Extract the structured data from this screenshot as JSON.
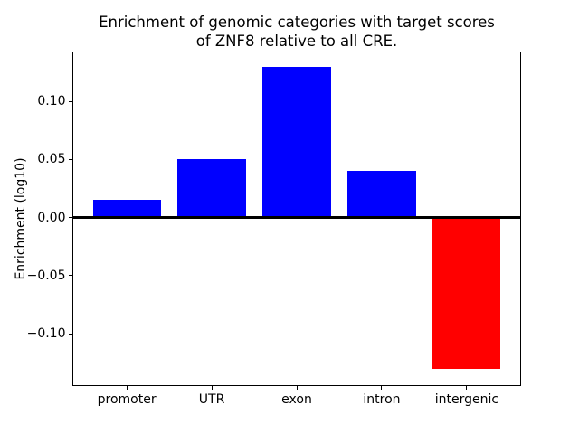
{
  "chart_data": {
    "type": "bar",
    "title": "Enrichment of genomic categories with target scores of ZNF8 relative to all CRE.",
    "title_lines": [
      "Enrichment of genomic categories with target scores",
      "of ZNF8 relative to all CRE."
    ],
    "categories": [
      "promoter",
      "UTR",
      "exon",
      "intron",
      "intergenic"
    ],
    "values": [
      0.015,
      0.05,
      0.13,
      0.04,
      -0.13
    ],
    "xlabel": "",
    "ylabel": "Enrichment (log10)",
    "ylim": [
      -0.145,
      0.143
    ],
    "yticks": [
      0.1,
      0.05,
      0.0,
      -0.05,
      -0.1
    ],
    "ytick_labels": [
      "0.10",
      "0.05",
      "0.00",
      "−0.05",
      "−0.10"
    ],
    "grid": false,
    "legend": null,
    "positive_color": "#0000ff",
    "negative_color": "#ff0000",
    "zero_line_color": "#000000",
    "bar_width_fraction": 0.8,
    "background_color": "#ffffff"
  }
}
